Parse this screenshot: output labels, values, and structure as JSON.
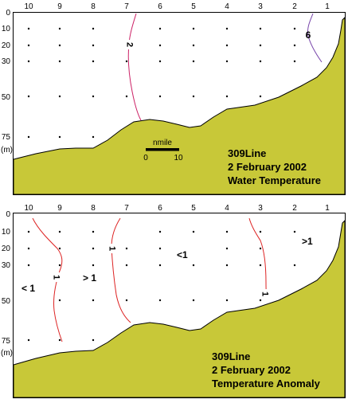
{
  "stations": [
    "10",
    "9",
    "8",
    "7",
    "6",
    "5",
    "4",
    "3",
    "2",
    "1"
  ],
  "depths": [
    "0",
    "10",
    "20",
    "30",
    "50",
    "75"
  ],
  "unit": "(m)",
  "top": {
    "title_lines": [
      "309Line",
      "2 February 2002",
      "Water Temperature"
    ],
    "contour_labels": [
      "2",
      "6"
    ],
    "scale_label": "nmile",
    "scale_start": "0",
    "scale_end": "10",
    "colors": {
      "terrain": "#c8c838",
      "isoline_2": "#cc2266",
      "isoline_6": "#7744aa"
    }
  },
  "bottom": {
    "title_lines": [
      "309Line",
      "2 February 2002",
      "Temperature Anomaly"
    ],
    "contour_labels": [
      "1",
      "1",
      "1",
      "1"
    ],
    "region_labels": [
      "< 1",
      "> 1",
      "<1",
      ">1"
    ],
    "colors": {
      "terrain": "#c8c838",
      "isoline": "#dd2222"
    }
  }
}
